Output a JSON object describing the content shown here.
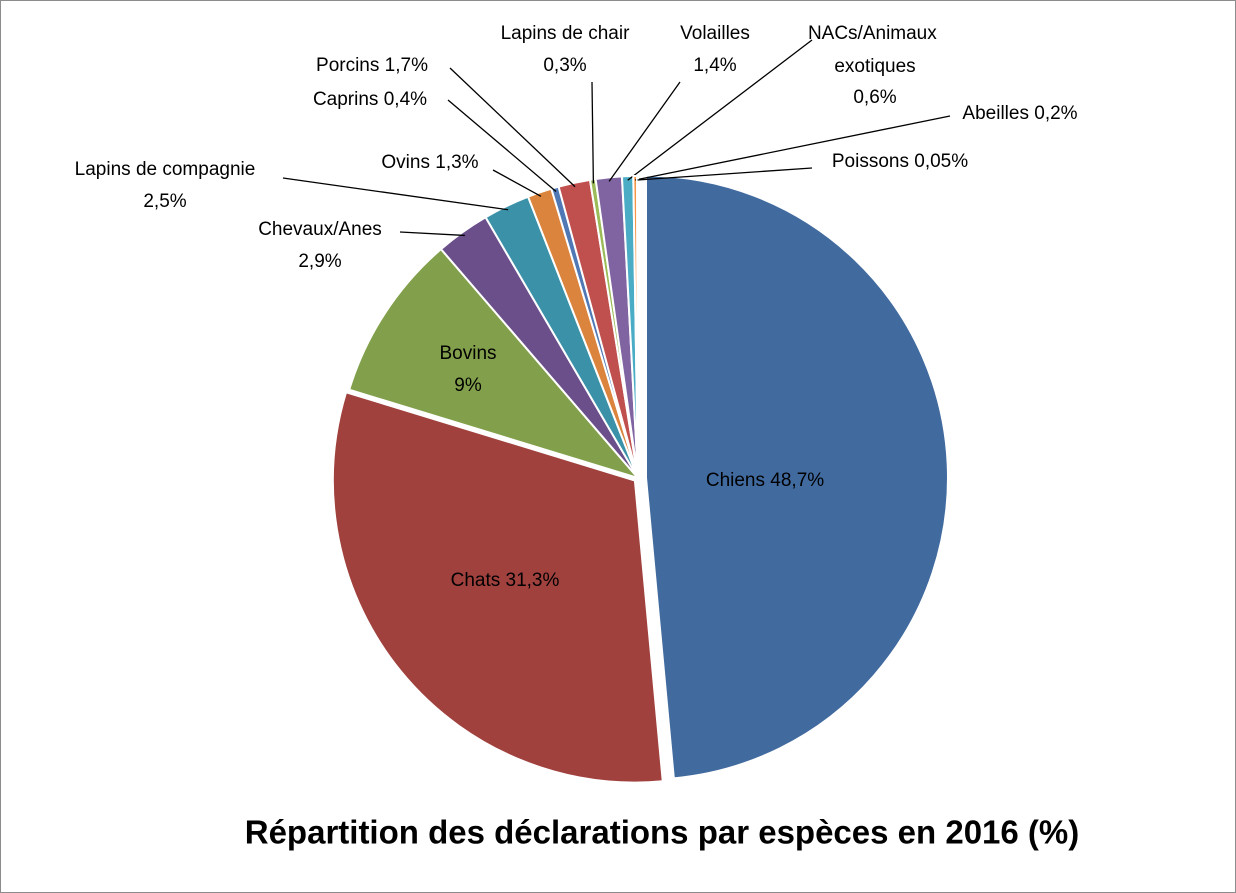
{
  "chart_data": {
    "type": "pie",
    "title": "Répartition des déclarations par espèces en 2016 (%)",
    "categories": [
      "Chiens",
      "Chats",
      "Bovins",
      "Chevaux/Anes",
      "Lapins de compagnie",
      "Ovins",
      "Caprins",
      "Porcins",
      "Lapins de chair",
      "Volailles",
      "NACs/Animaux exotiques",
      "Abeilles",
      "Poissons"
    ],
    "values": [
      48.7,
      31.3,
      9,
      2.9,
      2.5,
      1.3,
      0.4,
      1.7,
      0.3,
      1.4,
      0.6,
      0.2,
      0.05
    ],
    "value_labels": [
      "48,7%",
      "31,3%",
      "9%",
      "2,9%",
      "2,5%",
      "1,3%",
      "0,4%",
      "1,7%",
      "0,3%",
      "1,4%",
      "0,6%",
      "0,2%",
      "0,05%"
    ],
    "colors": [
      "#416a9f",
      "#a0413e",
      "#82a04b",
      "#6a4f8a",
      "#3b92a8",
      "#db843d",
      "#4f78b4",
      "#c0504d",
      "#9bbb59",
      "#8064a2",
      "#4bacc6",
      "#f79646",
      "#4f81bd"
    ]
  }
}
